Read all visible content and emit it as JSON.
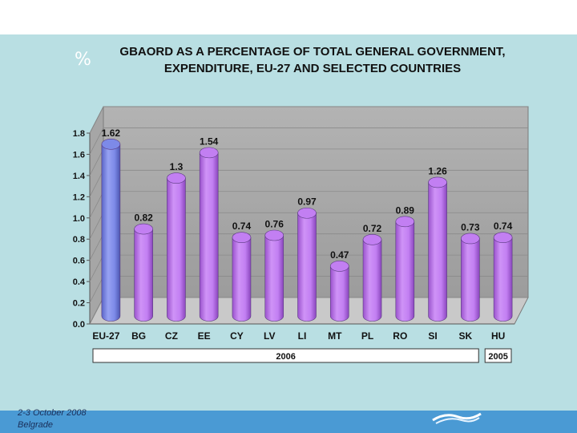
{
  "slide": {
    "percent_symbol": "%",
    "footer_line1": "2-3 October 2008",
    "footer_line2": "Belgrade"
  },
  "chart_data": {
    "type": "bar",
    "title_line1": "GBAORD AS A PERCENTAGE OF TOTAL GENERAL GOVERNMENT,",
    "title_line2": "EXPENDITURE, EU-27 AND SELECTED COUNTRIES",
    "categories": [
      "EU-27",
      "BG",
      "CZ",
      "EE",
      "CY",
      "LV",
      "LI",
      "MT",
      "PL",
      "RO",
      "SI",
      "SK",
      "HU"
    ],
    "values": [
      1.62,
      0.82,
      1.3,
      1.54,
      0.74,
      0.76,
      0.97,
      0.47,
      0.72,
      0.89,
      1.26,
      0.73,
      0.74
    ],
    "data_labels": [
      "1.62",
      "0.82",
      "1.3",
      "1.54",
      "0.74",
      "0.76",
      "0.97",
      "0.47",
      "0.72",
      "0.89",
      "1.26",
      "0.73",
      "0.74"
    ],
    "ylim": [
      0,
      1.8
    ],
    "yticks": [
      "0.0",
      "0.2",
      "0.4",
      "0.6",
      "0.8",
      "1.0",
      "1.2",
      "1.4",
      "1.6",
      "1.8"
    ],
    "xlabel": "",
    "ylabel": "%",
    "grid": true,
    "groups": [
      {
        "label": "2006",
        "from": "EU-27",
        "to": "SK"
      },
      {
        "label": "2005",
        "from": "HU",
        "to": "HU"
      }
    ],
    "colors": {
      "eu_bar": "#7d8ae8",
      "country_bar": "#c27ff2"
    }
  }
}
